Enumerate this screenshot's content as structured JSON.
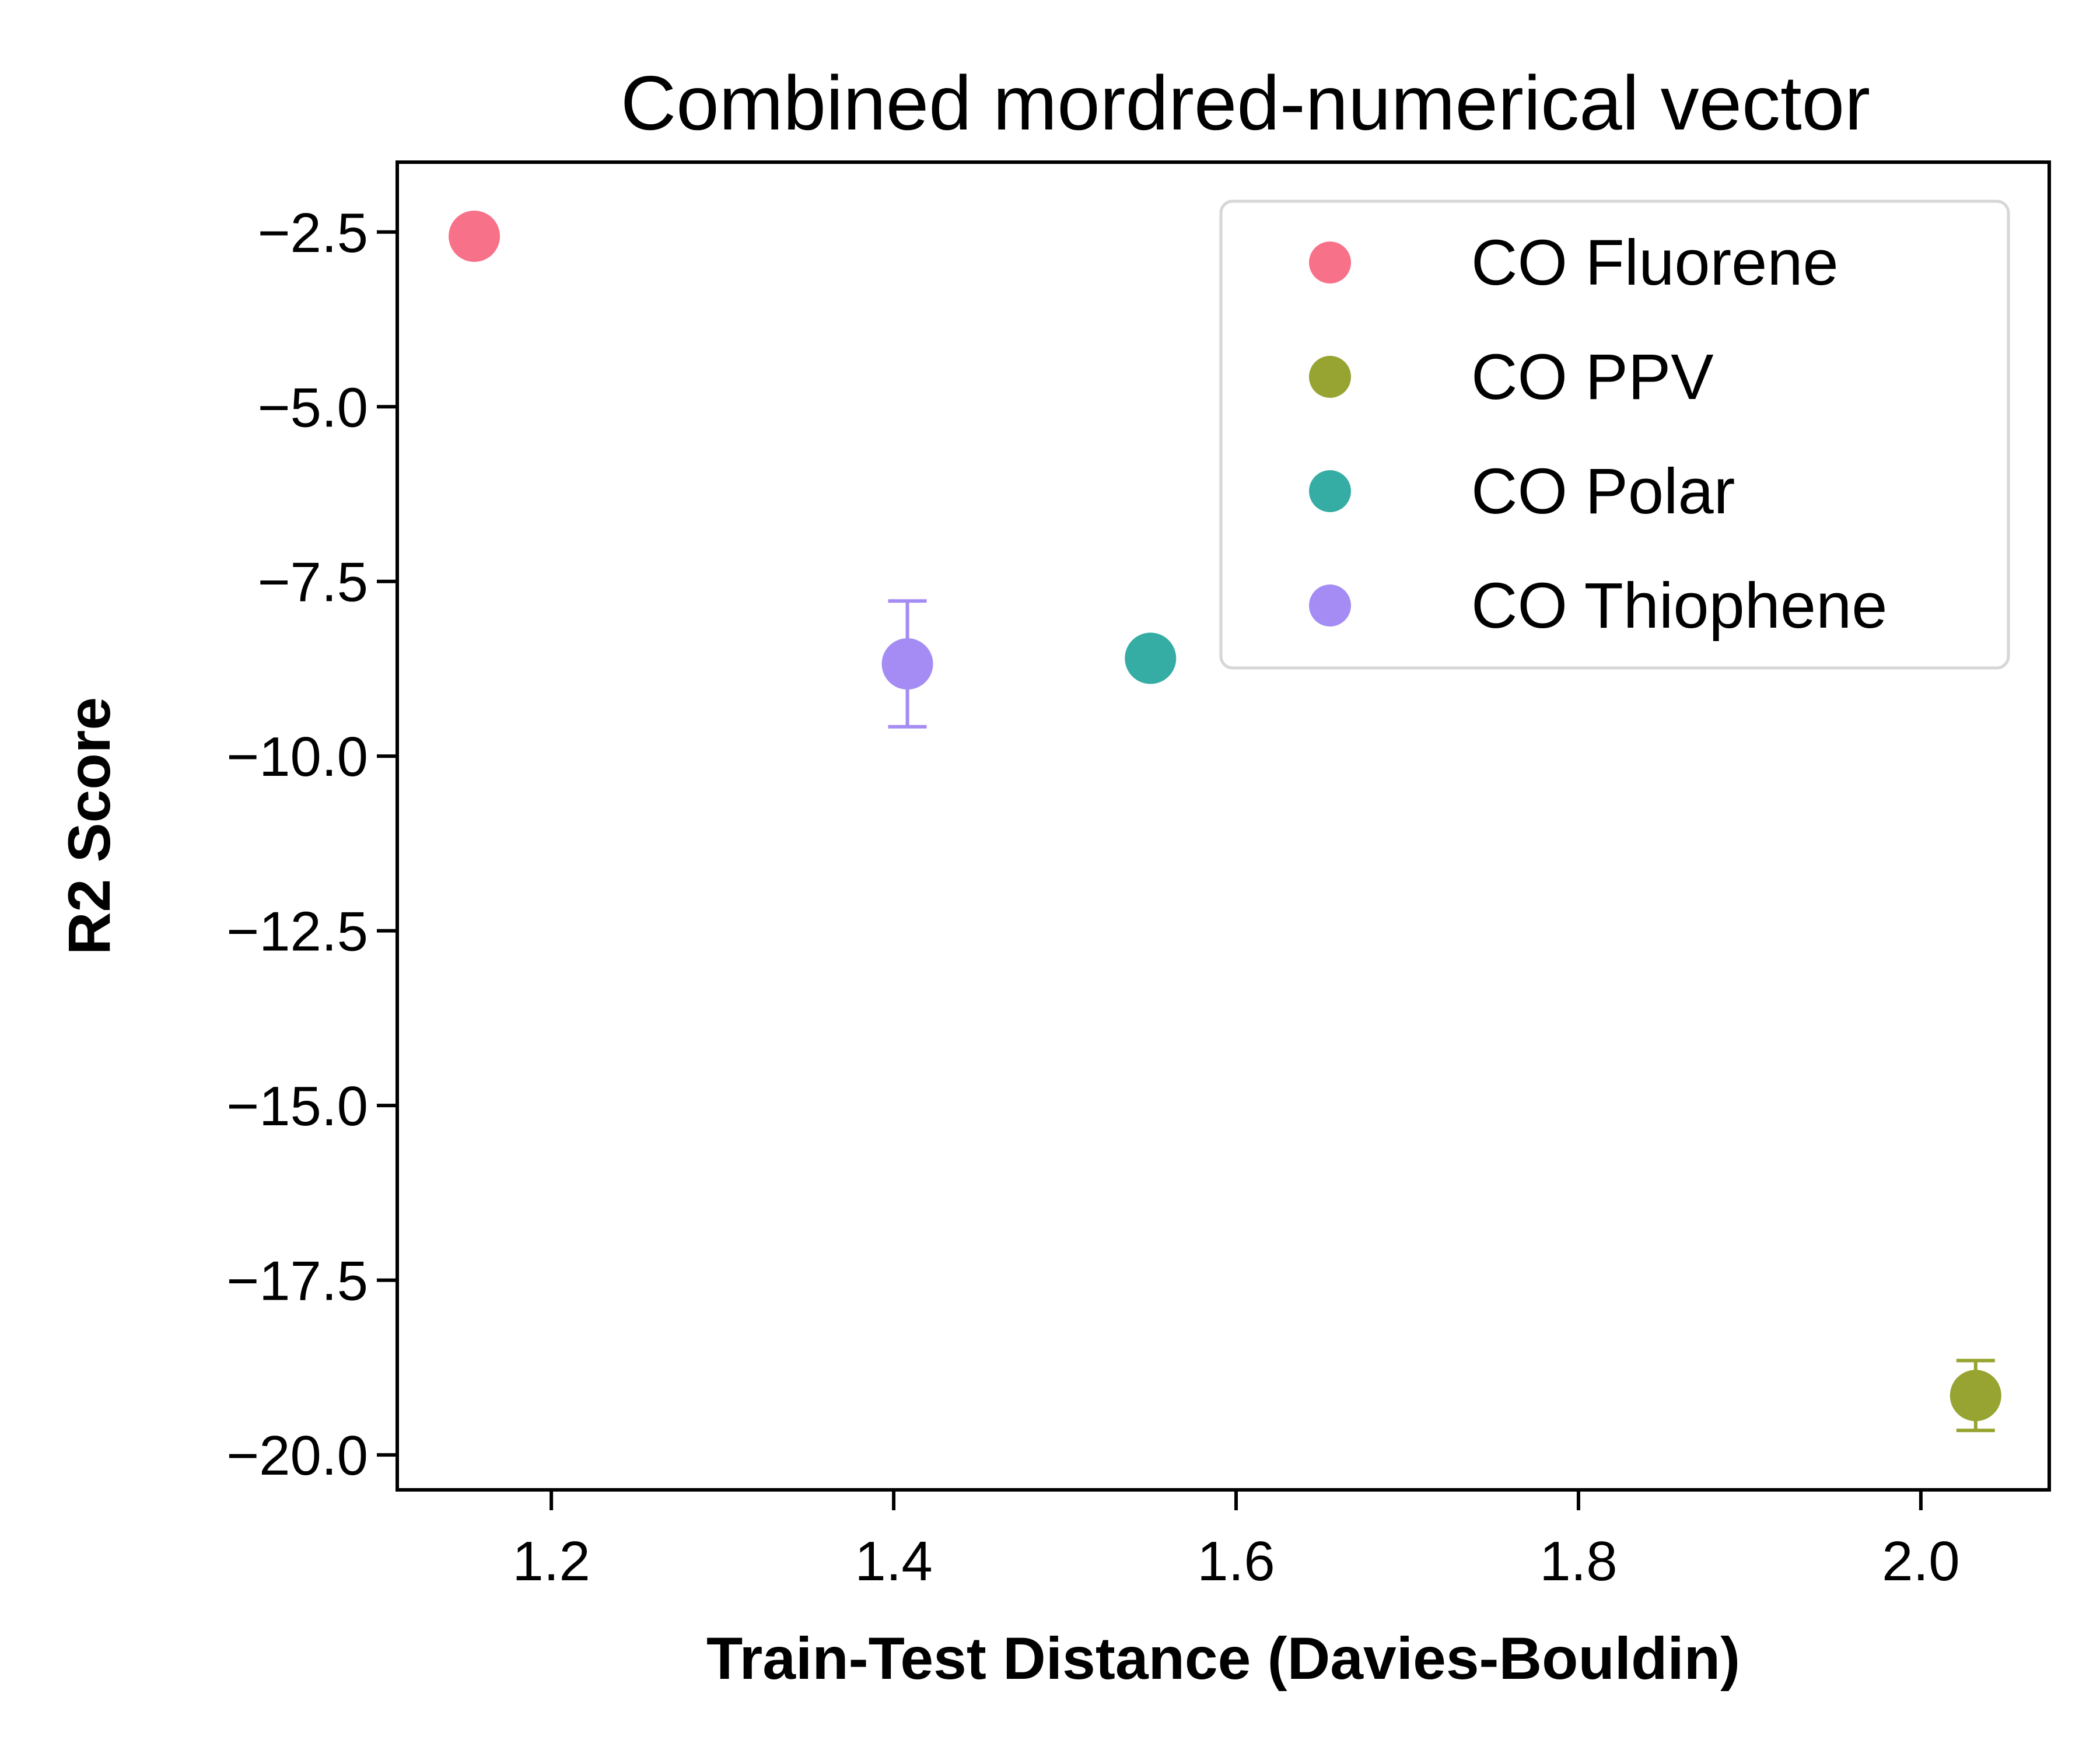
{
  "chart_data": {
    "type": "scatter",
    "title": "Combined mordred-numerical vector",
    "xlabel": "Train-Test Distance (Davies-Bouldin)",
    "ylabel": "R2 Score",
    "xlim": [
      1.11,
      2.075
    ],
    "ylim": [
      -20.5,
      -1.5
    ],
    "xticks": [
      1.2,
      1.4,
      1.6,
      1.8,
      2.0
    ],
    "xtick_labels": [
      "1.2",
      "1.4",
      "1.6",
      "1.8",
      "2.0"
    ],
    "yticks": [
      -2.5,
      -5.0,
      -7.5,
      -10.0,
      -12.5,
      -15.0,
      -17.5,
      -20.0
    ],
    "ytick_labels": [
      "−2.5",
      "−5.0",
      "−7.5",
      "−10.0",
      "−12.5",
      "−15.0",
      "−17.5",
      "−20.0"
    ],
    "grid": false,
    "legend_position": "top-right",
    "series": [
      {
        "name": "CO Fluorene",
        "color": "#f77189",
        "x": 1.155,
        "y": -2.56,
        "yerr": 0.0
      },
      {
        "name": "CO PPV",
        "color": "#97a431",
        "x": 2.032,
        "y": -19.15,
        "yerr": 0.5
      },
      {
        "name": "CO Polar",
        "color": "#36ada4",
        "x": 1.55,
        "y": -8.6,
        "yerr": 0.0
      },
      {
        "name": "CO Thiophene",
        "color": "#a48cf4",
        "x": 1.408,
        "y": -8.68,
        "yerr": 0.9
      }
    ]
  }
}
